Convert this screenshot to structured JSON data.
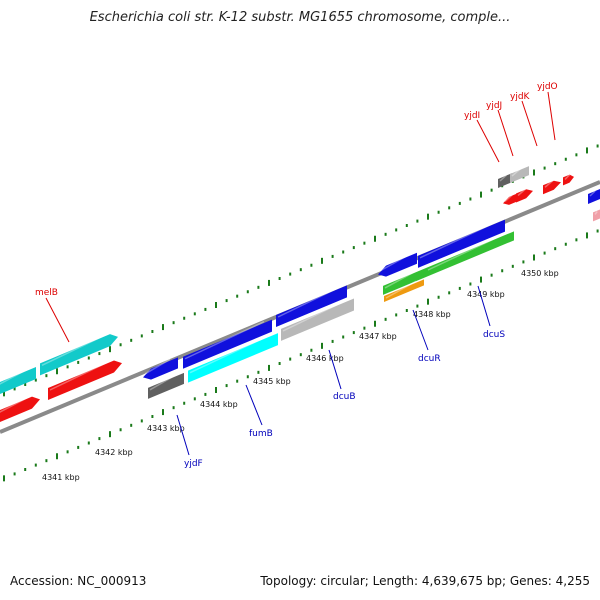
{
  "header": {
    "title": "Escherichia coli str. K-12 substr. MG1655 chromosome, comple..."
  },
  "footer": {
    "accession": "Accession: NC_000913",
    "stats": "Topology: circular; Length: 4,639,675 bp; Genes: 4,255"
  },
  "colors": {
    "tick": "#1a7a1a",
    "backbone": "#8a8a8a",
    "label_top": "#dd0000",
    "label_bottom": "#0000bb",
    "blue": "#1010dd",
    "cyan": "#12caca",
    "red": "#ee1111",
    "gray": "#b8b8b8",
    "darkgray": "#606060",
    "green": "#33c033",
    "orange": "#ee9a10",
    "lightcyan": "#00ffff",
    "pink": "#f0a0a8"
  },
  "ticks": [
    "4341 kbp",
    "4342 kbp",
    "4343 kbp",
    "4344 kbp",
    "4345 kbp",
    "4346 kbp",
    "4347 kbp",
    "4348 kbp",
    "4349 kbp",
    "4350 kbp"
  ],
  "gene_labels": {
    "melB": "melB",
    "yjdI": "yjdI",
    "yjdJ": "yjdJ",
    "yjdK": "yjdK",
    "yjdO": "yjdO",
    "yjdF": "yjdF",
    "fumB": "fumB",
    "dcuB": "dcuB",
    "dcuR": "dcuR",
    "dcuS": "dcuS"
  }
}
